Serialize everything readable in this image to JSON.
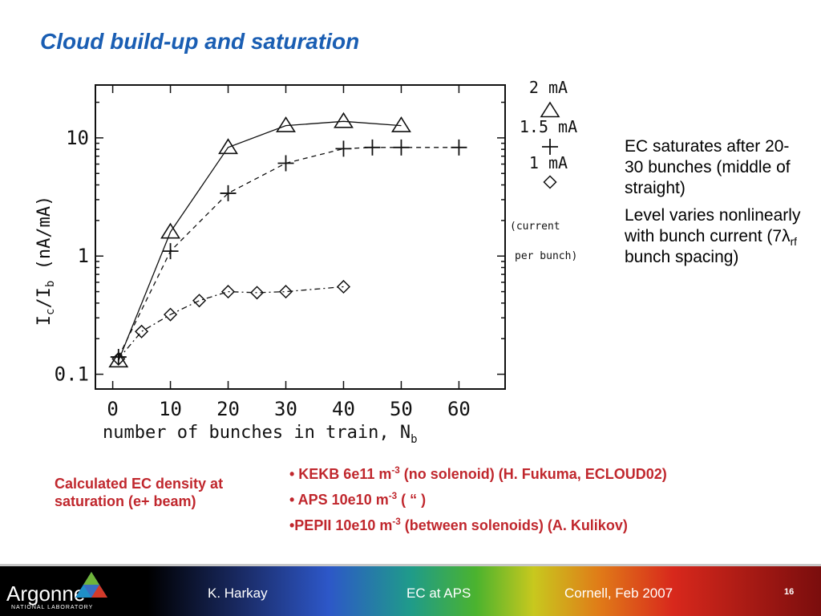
{
  "slide": {
    "title": "Cloud build-up and saturation",
    "notes": [
      "EC saturates after 20-30 bunches (middle of straight)",
      "Level varies nonlinearly with bunch current (7",
      "rf",
      "bunch spacing)"
    ],
    "caption": "Calculated EC density at saturation (e+ beam)",
    "bullets": [
      {
        "prefix": "• KEKB 6e11 m",
        "sup": "-3",
        "suffix": " (no solenoid) (H. Fukuma, ECLOUD02)"
      },
      {
        "prefix": "• APS 10e10 m",
        "sup": "-3",
        "suffix": " ( “ )"
      },
      {
        "prefix": "•PEPII 10e10 m",
        "sup": "-3",
        "suffix": " (between solenoids) (A. Kulikov)"
      }
    ]
  },
  "footer": {
    "logo": "Argonne",
    "logo_sub": "NATIONAL LABORATORY",
    "author": "K. Harkay",
    "topic": "EC at APS",
    "venue": "Cornell, Feb 2007",
    "page": "16"
  },
  "chart_data": {
    "type": "line",
    "title": "",
    "xlabel": "number of bunches in train, N",
    "xlabel_sub": "b",
    "ylabel": "I",
    "ylabel_parts": [
      "I",
      "c",
      "/I",
      "b",
      " (nA/mA)"
    ],
    "x_ticks": [
      "0",
      "10",
      "20",
      "30",
      "40",
      "50",
      "60"
    ],
    "y_ticks": [
      "0.1",
      "1",
      "10"
    ],
    "xlim": [
      -3,
      68
    ],
    "ylim": [
      0.075,
      28
    ],
    "yscale": "log",
    "legend_title": [
      "(current",
      "per bunch)"
    ],
    "legend_placement": "right",
    "series": [
      {
        "name": "2 mA",
        "marker": "triangle",
        "linestyle": "solid",
        "x": [
          1,
          10,
          20,
          30,
          40,
          50
        ],
        "y": [
          0.13,
          1.6,
          8.3,
          12.7,
          13.8,
          12.7
        ]
      },
      {
        "name": "1.5 mA",
        "marker": "plus",
        "linestyle": "dashed",
        "x": [
          1,
          10,
          20,
          30,
          40,
          45,
          50,
          60
        ],
        "y": [
          0.14,
          1.1,
          3.4,
          6.1,
          8.1,
          8.3,
          8.3,
          8.3
        ]
      },
      {
        "name": "1 mA",
        "marker": "diamond",
        "linestyle": "dashdot",
        "x": [
          1,
          5,
          10,
          15,
          20,
          25,
          30,
          40
        ],
        "y": [
          0.135,
          0.23,
          0.32,
          0.42,
          0.5,
          0.49,
          0.5,
          0.55
        ]
      }
    ]
  }
}
